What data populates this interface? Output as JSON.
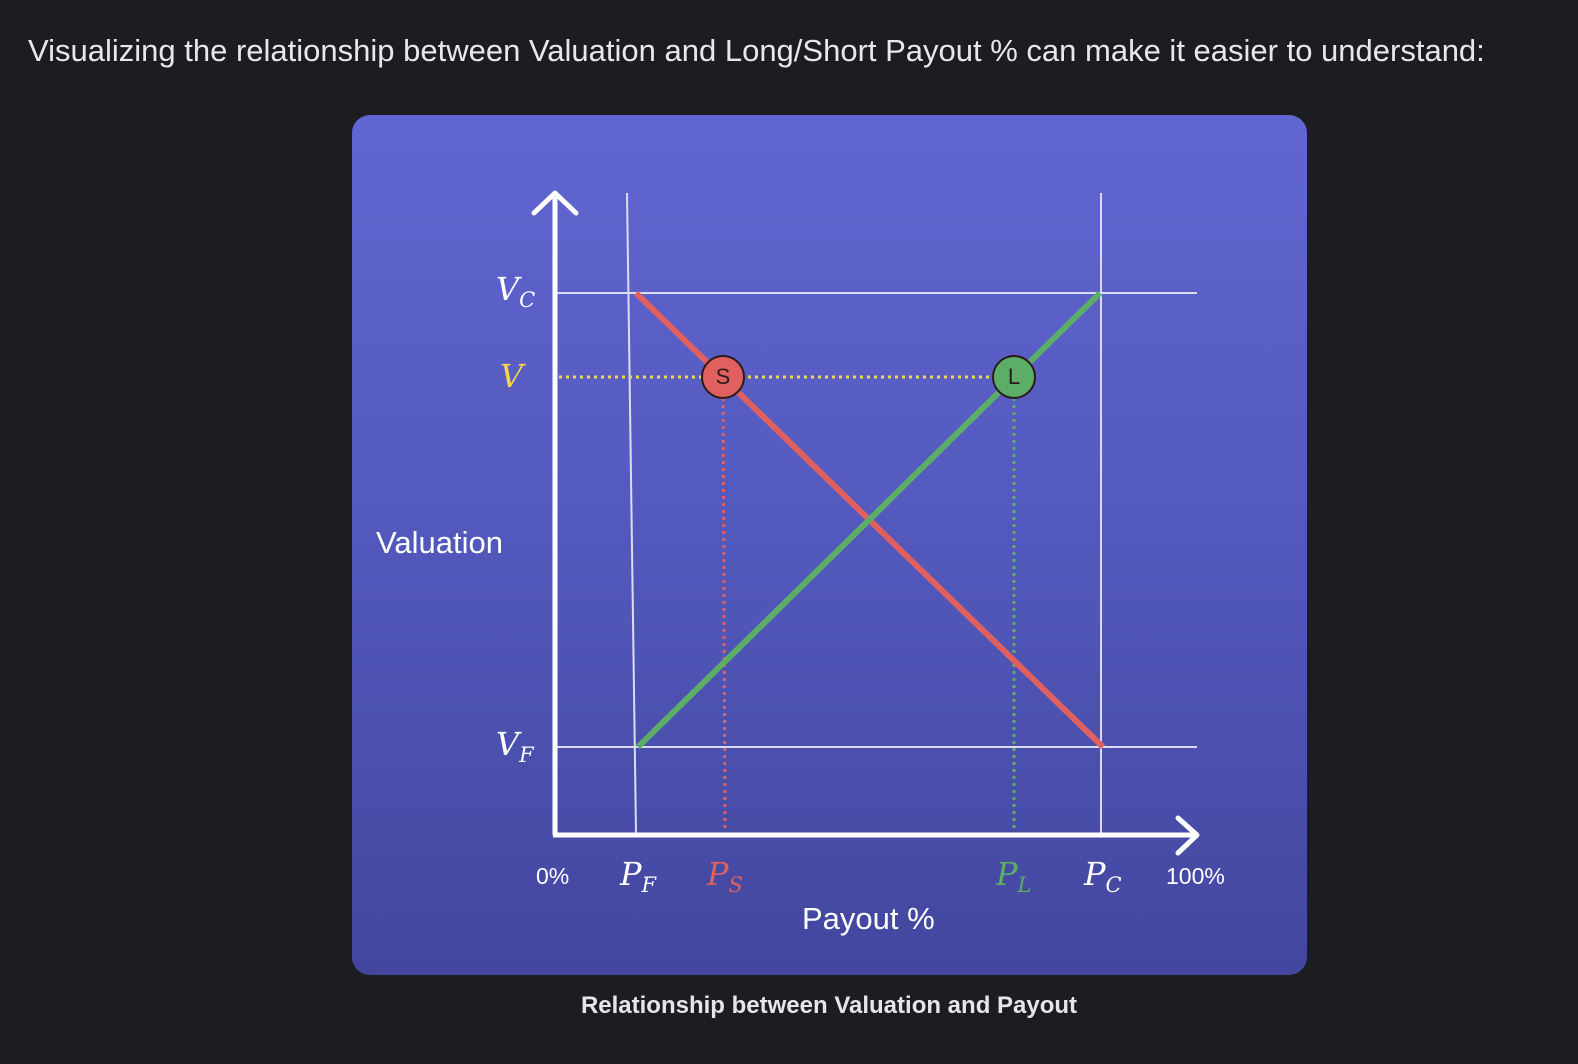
{
  "intro_text": "Visualizing the relationship between Valuation and Long/Short Payout % can make it easier to understand:",
  "caption": "Relationship between Valuation and Payout",
  "diagram": {
    "y_axis_title": "Valuation",
    "x_axis_title": "Payout %",
    "x_min_label": "0%",
    "x_max_label": "100%",
    "y_labels": {
      "vc": {
        "base": "V",
        "sub": "C"
      },
      "v": {
        "base": "V"
      },
      "vf": {
        "base": "V",
        "sub": "F"
      }
    },
    "x_labels": {
      "pf": {
        "base": "P",
        "sub": "F"
      },
      "ps": {
        "base": "P",
        "sub": "S"
      },
      "pl": {
        "base": "P",
        "sub": "L"
      },
      "pc": {
        "base": "P",
        "sub": "C"
      }
    },
    "short_marker": "S",
    "long_marker": "L",
    "colors": {
      "short": "#e06060",
      "long": "#5cad67",
      "valuation": "#f2d64b",
      "axis": "#ffffff",
      "guide": "#dcdcf0"
    }
  }
}
